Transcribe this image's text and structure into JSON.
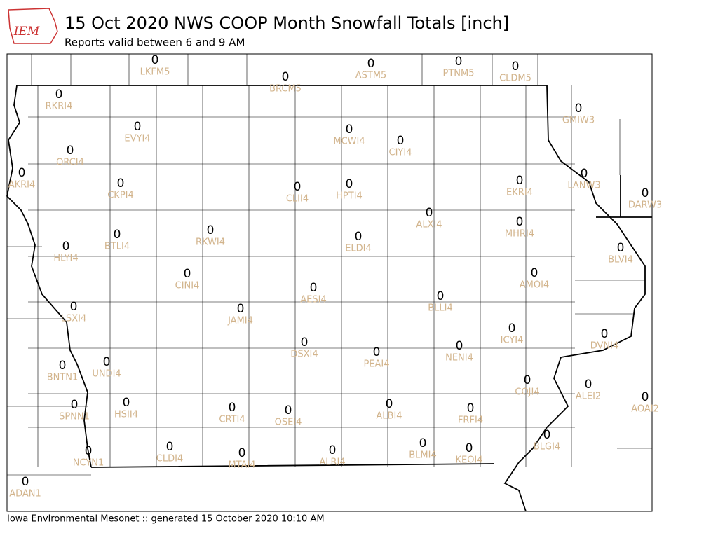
{
  "header": {
    "logo": "IEM",
    "title": "15 Oct 2020 NWS COOP Month Snowfall Totals [inch]",
    "subtitle": "Reports valid between 6 and 9 AM"
  },
  "stations": [
    {
      "id": "LKFM5",
      "value": 0
    },
    {
      "id": "BRCM5",
      "value": 0
    },
    {
      "id": "ASTM5",
      "value": 0
    },
    {
      "id": "PTNM5",
      "value": 0
    },
    {
      "id": "CLDM5",
      "value": 0
    },
    {
      "id": "RKRI4",
      "value": 0
    },
    {
      "id": "GMIW3",
      "value": 0
    },
    {
      "id": "EVYI4",
      "value": 0
    },
    {
      "id": "MCWI4",
      "value": 0
    },
    {
      "id": "CIYI4",
      "value": 0
    },
    {
      "id": "ORCI4",
      "value": 0
    },
    {
      "id": "AKRI4",
      "value": 0
    },
    {
      "id": "CKPI4",
      "value": 0
    },
    {
      "id": "CLII4",
      "value": 0
    },
    {
      "id": "HPTI4",
      "value": 0
    },
    {
      "id": "EKRI4",
      "value": 0
    },
    {
      "id": "LANW3",
      "value": 0
    },
    {
      "id": "DARW3",
      "value": 0
    },
    {
      "id": "ALXI4",
      "value": 0
    },
    {
      "id": "RKWI4",
      "value": 0
    },
    {
      "id": "BTLI4",
      "value": 0
    },
    {
      "id": "MHRI4",
      "value": 0
    },
    {
      "id": "ELDI4",
      "value": 0
    },
    {
      "id": "HLYI4",
      "value": 0
    },
    {
      "id": "BLVI4",
      "value": 0
    },
    {
      "id": "CINI4",
      "value": 0
    },
    {
      "id": "AMOI4",
      "value": 0
    },
    {
      "id": "AESI4",
      "value": 0
    },
    {
      "id": "BLLI4",
      "value": 0
    },
    {
      "id": "LSXI4",
      "value": 0
    },
    {
      "id": "JAMI4",
      "value": 0
    },
    {
      "id": "ICYI4",
      "value": 0
    },
    {
      "id": "DVNI4",
      "value": 0
    },
    {
      "id": "DSXI4",
      "value": 0
    },
    {
      "id": "PEAI4",
      "value": 0
    },
    {
      "id": "NENI4",
      "value": 0
    },
    {
      "id": "BNTN1",
      "value": 0
    },
    {
      "id": "UNDI4",
      "value": 0
    },
    {
      "id": "COJI4",
      "value": 0
    },
    {
      "id": "ALEI2",
      "value": 0
    },
    {
      "id": "AOAI2",
      "value": 0
    },
    {
      "id": "HSII4",
      "value": 0
    },
    {
      "id": "SPNN1",
      "value": 0
    },
    {
      "id": "CRTI4",
      "value": 0
    },
    {
      "id": "OSEI4",
      "value": 0
    },
    {
      "id": "ALBI4",
      "value": 0
    },
    {
      "id": "FRFI4",
      "value": 0
    },
    {
      "id": "BLGI4",
      "value": 0
    },
    {
      "id": "NCYN1",
      "value": 0
    },
    {
      "id": "CLDI4",
      "value": 0
    },
    {
      "id": "MTAI4",
      "value": 0
    },
    {
      "id": "ALRI4",
      "value": 0
    },
    {
      "id": "BLMI4",
      "value": 0
    },
    {
      "id": "KEOI4",
      "value": 0
    },
    {
      "id": "ADAN1",
      "value": 0
    }
  ],
  "footer": "Iowa Environmental Mesonet :: generated 15 October 2020 10:10 AM"
}
